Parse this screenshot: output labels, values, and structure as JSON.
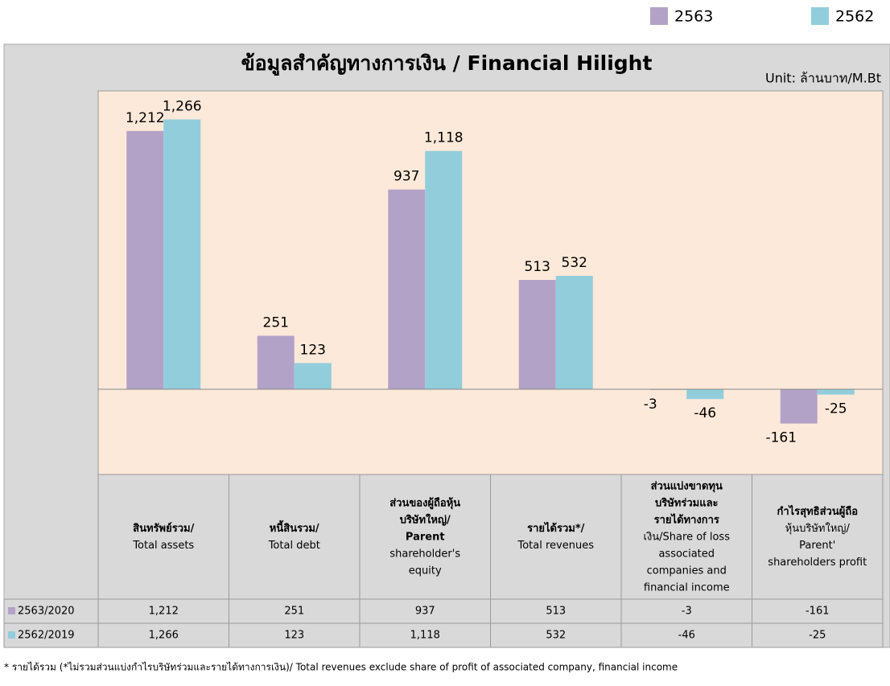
{
  "chart_data": {
    "type": "bar",
    "title": "ข้อมูลสำคัญทางการเงิน / Financial Hilight",
    "unit": "Unit: ล้านบาท/M.Bt",
    "categories": [
      [
        "สินทรัพย์รวม/",
        "Total assets"
      ],
      [
        "หนี้สินรวม/",
        "Total debt"
      ],
      [
        "ส่วนของผู้ถือหุ้น",
        "บริษัทใหญ่/",
        "Parent",
        "shareholder's",
        "equity"
      ],
      [
        "รายได้รวม*/",
        "Total revenues"
      ],
      [
        "ส่วนแบ่งขาดทุน",
        "บริษัทร่วมและ",
        "รายได้ทางการ",
        "เงิน/Share of loss",
        "associated",
        "companies and",
        "financial income"
      ],
      [
        "กำไรสุทธิส่วนผู้ถือ",
        "หุ้นบริษัทใหญ่/",
        "Parent'",
        "shareholders profit"
      ]
    ],
    "series": [
      {
        "name": "2563",
        "row_label": "2563/2020",
        "color": "#b3a2c7",
        "values": [
          1212,
          251,
          937,
          513,
          -3,
          -161
        ],
        "value_labels": [
          "1,212",
          "251",
          "937",
          "513",
          "-3",
          "-161"
        ]
      },
      {
        "name": "2562",
        "row_label": "2562/2019",
        "color": "#92cddc",
        "values": [
          1266,
          123,
          1118,
          532,
          -46,
          -25
        ],
        "value_labels": [
          "1,266",
          "123",
          "1,118",
          "532",
          "-46",
          "-25"
        ]
      }
    ],
    "ylim": [
      -400,
      1400
    ],
    "footnote": "* รายได้รวม (*ไม่รวมส่วนแบ่งกำไรบริษัทร่วมและรายได้ทางการเงิน)/ Total revenues exclude  share of profit of associated company, financial income"
  }
}
